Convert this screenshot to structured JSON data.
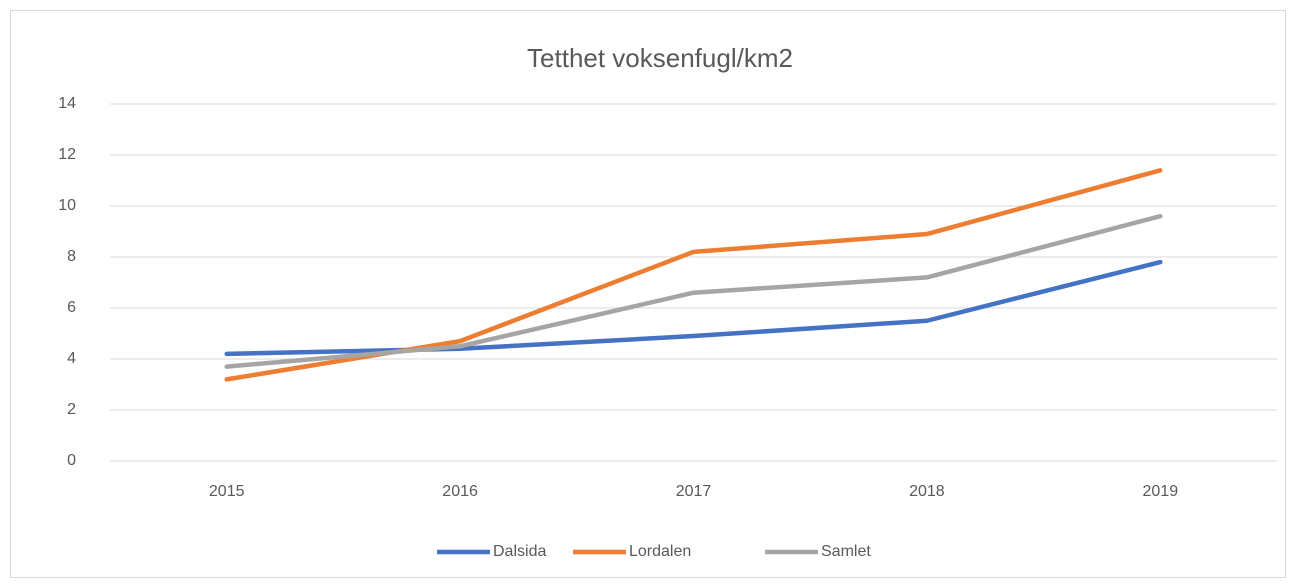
{
  "chart_data": {
    "type": "line",
    "title": "Tetthet voksenfugl/km2",
    "categories": [
      "2015",
      "2016",
      "2017",
      "2018",
      "2019"
    ],
    "series": [
      {
        "name": "Dalsida",
        "color": "#4472c4",
        "values": [
          4.2,
          4.4,
          4.9,
          5.5,
          7.8
        ]
      },
      {
        "name": "Lordalen",
        "color": "#ed7d31",
        "values": [
          3.2,
          4.7,
          8.2,
          8.9,
          11.4
        ]
      },
      {
        "name": "Samlet",
        "color": "#a5a5a5",
        "values": [
          3.7,
          4.5,
          6.6,
          7.2,
          9.6
        ]
      }
    ],
    "ylim": [
      0,
      14
    ],
    "yticks": [
      0,
      2,
      4,
      6,
      8,
      10,
      12,
      14
    ],
    "grid": true,
    "legend": "bottom"
  }
}
